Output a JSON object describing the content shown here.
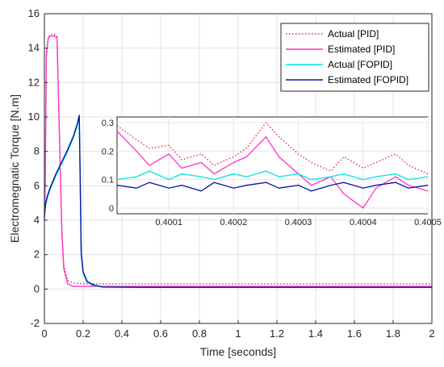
{
  "chart_data": {
    "type": "line",
    "xlabel": "Time [seconds]",
    "ylabel": "Electromegnatic Torque [N.m]",
    "xlim": [
      0,
      2
    ],
    "ylim": [
      -2,
      16
    ],
    "xticks": [
      "0",
      "0.2",
      "0.4",
      "0.6",
      "0.8",
      "1",
      "1.2",
      "1.4",
      "1.6",
      "1.8",
      "2"
    ],
    "yticks": [
      "-2",
      "0",
      "2",
      "4",
      "6",
      "8",
      "10",
      "12",
      "14",
      "16"
    ],
    "grid": true,
    "legend_position": "top-right",
    "series": [
      {
        "name": "Actual [PID]",
        "color": "#e0203a",
        "style": "dotted",
        "x": [
          0,
          0.004,
          0.01,
          0.02,
          0.03,
          0.05,
          0.065,
          0.08,
          0.09,
          0.1,
          0.12,
          0.15,
          0.2,
          0.3,
          0.5,
          1.0,
          1.5,
          2.0
        ],
        "y": [
          4.0,
          6.2,
          13.8,
          14.6,
          14.8,
          14.8,
          14.7,
          8.0,
          3.5,
          1.4,
          0.5,
          0.35,
          0.3,
          0.3,
          0.3,
          0.3,
          0.3,
          0.3
        ]
      },
      {
        "name": "Estimated [PID]",
        "color": "#ff33cc",
        "style": "solid",
        "x": [
          0,
          0.004,
          0.01,
          0.02,
          0.03,
          0.05,
          0.065,
          0.08,
          0.09,
          0.1,
          0.12,
          0.15,
          0.2,
          0.3,
          0.5,
          1.0,
          1.5,
          2.0
        ],
        "y": [
          4.0,
          6.0,
          13.5,
          14.6,
          14.7,
          14.7,
          14.6,
          7.8,
          3.3,
          1.2,
          0.3,
          0.15,
          0.15,
          0.15,
          0.15,
          0.15,
          0.15,
          0.15
        ]
      },
      {
        "name": "Actual [FOPID]",
        "color": "#00e5e5",
        "style": "solid",
        "x": [
          0,
          0.005,
          0.015,
          0.03,
          0.06,
          0.09,
          0.12,
          0.15,
          0.17,
          0.18,
          0.185,
          0.19,
          0.2,
          0.22,
          0.25,
          0.3,
          0.5,
          1.0,
          1.5,
          2.0
        ],
        "y": [
          4.1,
          4.8,
          5.3,
          5.8,
          6.6,
          7.3,
          8.0,
          8.8,
          9.5,
          9.9,
          6.0,
          2.0,
          0.9,
          0.4,
          0.2,
          0.12,
          0.1,
          0.1,
          0.1,
          0.1
        ]
      },
      {
        "name": "Estimated [FOPID]",
        "color": "#0a14a0",
        "style": "solid",
        "x": [
          0,
          0.005,
          0.015,
          0.03,
          0.06,
          0.09,
          0.12,
          0.15,
          0.17,
          0.18,
          0.185,
          0.19,
          0.2,
          0.22,
          0.25,
          0.3,
          0.5,
          1.0,
          1.5,
          2.0
        ],
        "y": [
          4.2,
          4.9,
          5.4,
          5.9,
          6.7,
          7.4,
          8.1,
          8.9,
          9.6,
          10.1,
          6.2,
          2.1,
          1.0,
          0.45,
          0.25,
          0.12,
          0.1,
          0.1,
          0.1,
          0.1
        ]
      }
    ],
    "inset": {
      "xlim": [
        0.40002,
        0.4005
      ],
      "ylim": [
        -0.02,
        0.32
      ],
      "xticks": [
        "0.4001",
        "0.4002",
        "0.4003",
        "0.4004",
        "0.4005"
      ],
      "yticks": [
        "0",
        "0.1",
        "0.2",
        "0.3"
      ],
      "series": [
        {
          "name": "Actual [PID]",
          "x": [
            0.40002,
            0.40005,
            0.40007,
            0.4001,
            0.40012,
            0.40015,
            0.40017,
            0.4002,
            0.40022,
            0.40025,
            0.40027,
            0.4003,
            0.40032,
            0.40035,
            0.40037,
            0.4004,
            0.40042,
            0.40045,
            0.40047,
            0.4005
          ],
          "y": [
            0.29,
            0.24,
            0.21,
            0.22,
            0.17,
            0.19,
            0.15,
            0.18,
            0.21,
            0.3,
            0.25,
            0.19,
            0.16,
            0.13,
            0.18,
            0.14,
            0.16,
            0.19,
            0.15,
            0.12
          ]
        },
        {
          "name": "Estimated [PID]",
          "x": [
            0.40002,
            0.40005,
            0.40007,
            0.4001,
            0.40012,
            0.40015,
            0.40017,
            0.4002,
            0.40022,
            0.40025,
            0.40027,
            0.4003,
            0.40032,
            0.40035,
            0.40037,
            0.4004,
            0.40042,
            0.40045,
            0.40047,
            0.4005
          ],
          "y": [
            0.27,
            0.2,
            0.15,
            0.19,
            0.14,
            0.16,
            0.12,
            0.16,
            0.18,
            0.25,
            0.18,
            0.12,
            0.08,
            0.11,
            0.05,
            0.0,
            0.07,
            0.11,
            0.08,
            0.06
          ]
        },
        {
          "name": "Actual [FOPID]",
          "x": [
            0.40002,
            0.40005,
            0.40007,
            0.4001,
            0.40012,
            0.40015,
            0.40017,
            0.4002,
            0.40022,
            0.40025,
            0.40027,
            0.4003,
            0.40032,
            0.40035,
            0.40037,
            0.4004,
            0.40042,
            0.40045,
            0.40047,
            0.4005
          ],
          "y": [
            0.1,
            0.11,
            0.13,
            0.1,
            0.12,
            0.11,
            0.1,
            0.12,
            0.11,
            0.13,
            0.11,
            0.12,
            0.1,
            0.11,
            0.12,
            0.1,
            0.11,
            0.12,
            0.1,
            0.11
          ]
        },
        {
          "name": "Estimated [FOPID]",
          "x": [
            0.40002,
            0.40005,
            0.40007,
            0.4001,
            0.40012,
            0.40015,
            0.40017,
            0.4002,
            0.40022,
            0.40025,
            0.40027,
            0.4003,
            0.40032,
            0.40035,
            0.40037,
            0.4004,
            0.40042,
            0.40045,
            0.40047,
            0.4005
          ],
          "y": [
            0.08,
            0.07,
            0.09,
            0.07,
            0.08,
            0.06,
            0.09,
            0.07,
            0.08,
            0.09,
            0.07,
            0.08,
            0.06,
            0.08,
            0.09,
            0.07,
            0.08,
            0.09,
            0.07,
            0.08
          ]
        }
      ]
    }
  }
}
